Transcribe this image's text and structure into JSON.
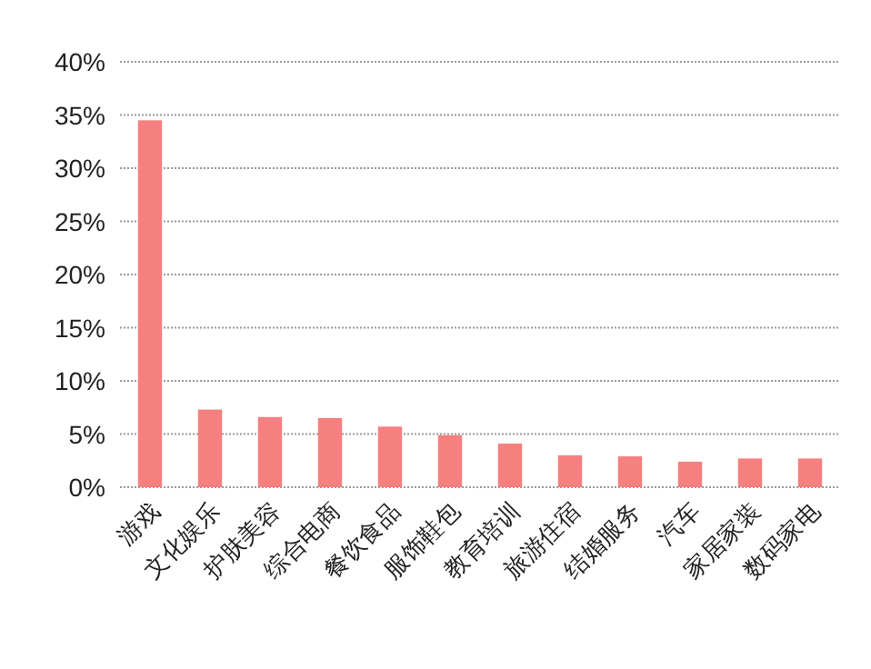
{
  "chart_data": {
    "type": "bar",
    "categories": [
      "游戏",
      "文化娱乐",
      "护肤美容",
      "综合电商",
      "餐饮食品",
      "服饰鞋包",
      "教育培训",
      "旅游住宿",
      "结婚服务",
      "汽车",
      "家居家装",
      "数码家电"
    ],
    "values": [
      34.5,
      7.3,
      6.6,
      6.5,
      5.7,
      4.9,
      4.1,
      3.0,
      2.9,
      2.4,
      2.7,
      2.7
    ],
    "color": "#f67f7f",
    "ylim": [
      0,
      40
    ],
    "yticks": [
      {
        "value": 0,
        "label": "0%"
      },
      {
        "value": 5,
        "label": "5%"
      },
      {
        "value": 10,
        "label": "10%"
      },
      {
        "value": 15,
        "label": "15%"
      },
      {
        "value": 20,
        "label": "20%"
      },
      {
        "value": 25,
        "label": "25%"
      },
      {
        "value": 30,
        "label": "30%"
      },
      {
        "value": 35,
        "label": "35%"
      },
      {
        "value": 40,
        "label": "40%"
      }
    ],
    "grid": "y"
  }
}
